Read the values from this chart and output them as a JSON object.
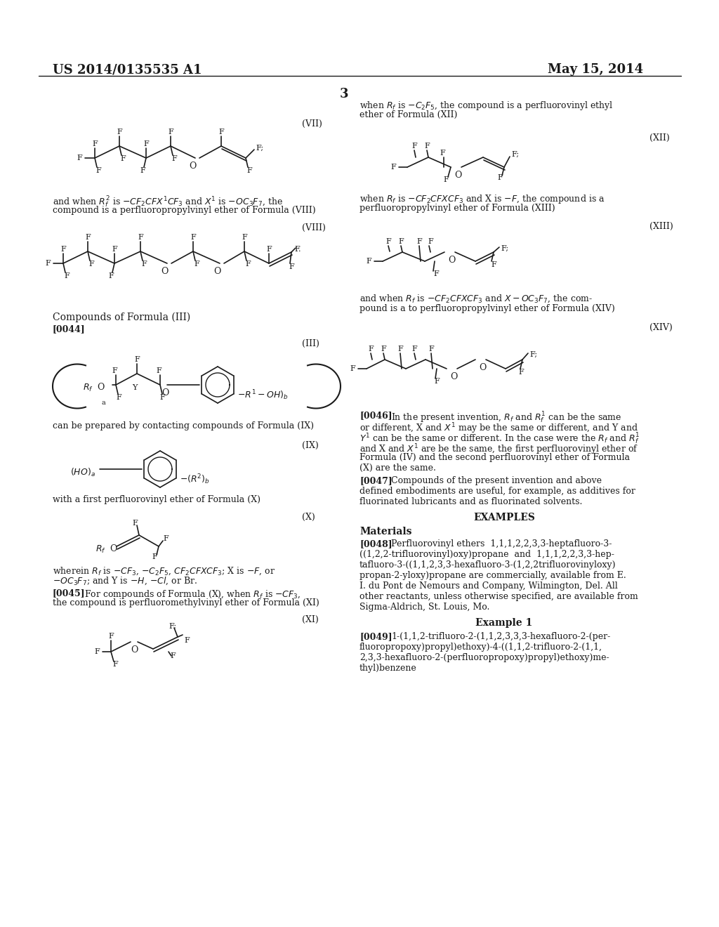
{
  "bg_color": "#ffffff",
  "header_left": "US 2014/0135535 A1",
  "header_right": "May 15, 2014",
  "page_number": "3",
  "text_color": "#1a1a1a",
  "line_color": "#1a1a1a"
}
